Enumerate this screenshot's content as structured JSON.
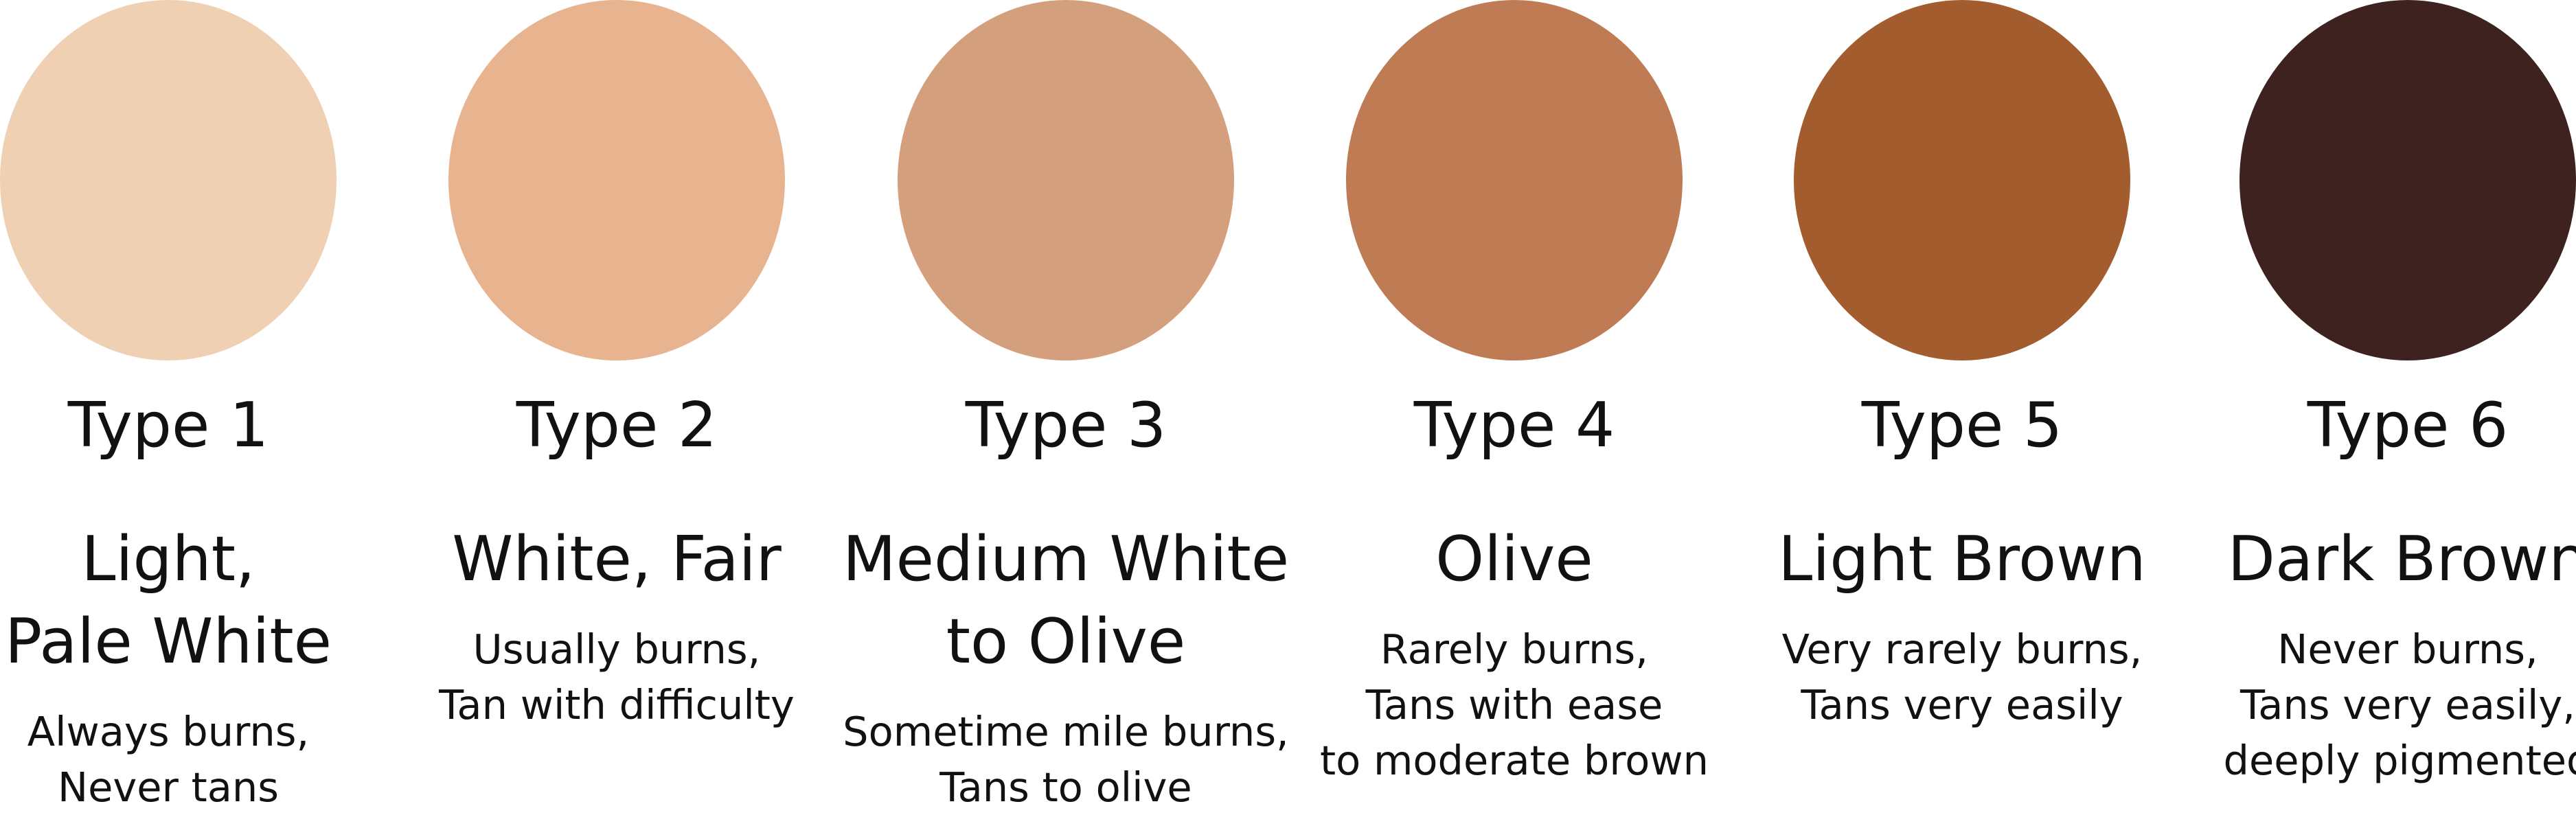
{
  "skin_types": [
    {
      "type_label": "Type 1",
      "name_lines": [
        "Light,",
        "Pale White"
      ],
      "description_lines": [
        "Always burns,",
        "Never tans"
      ],
      "color": "#F0D0B2"
    },
    {
      "type_label": "Type 2",
      "name_lines": [
        "White, Fair"
      ],
      "description_lines": [
        "Usually burns,",
        "Tan with difficulty"
      ],
      "color": "#E8B38F"
    },
    {
      "type_label": "Type 3",
      "name_lines": [
        "Medium White",
        "to Olive"
      ],
      "description_lines": [
        "Sometime mile burns,",
        "Tans to olive"
      ],
      "color": "#D49F7D"
    },
    {
      "type_label": "Type 4",
      "name_lines": [
        "Olive"
      ],
      "description_lines": [
        "Rarely burns,",
        "Tans with ease",
        "to moderate brown"
      ],
      "color": "#BE7B54"
    },
    {
      "type_label": "Type 5",
      "name_lines": [
        "Light Brown"
      ],
      "description_lines": [
        "Very rarely burns,",
        "Tans very easily"
      ],
      "color": "#A35C2D"
    },
    {
      "type_label": "Type 6",
      "name_lines": [
        "Dark Brown"
      ],
      "description_lines": [
        "Never burns,",
        "Tans very easily,",
        "deeply pigmented"
      ],
      "color": "#3D2220"
    }
  ]
}
